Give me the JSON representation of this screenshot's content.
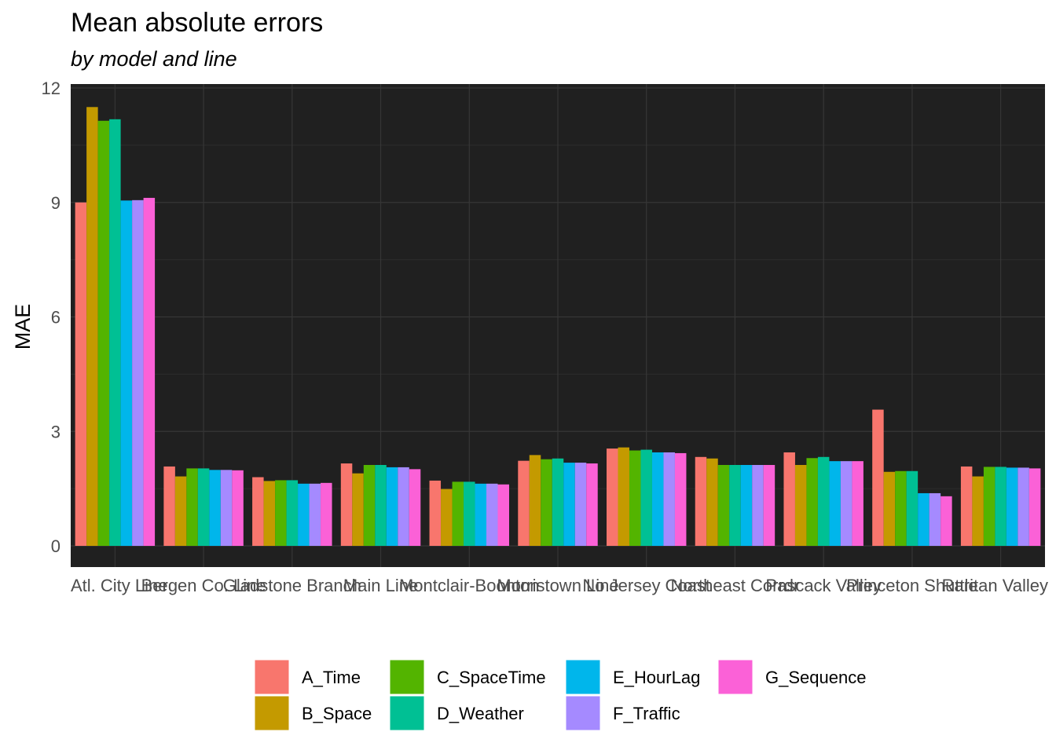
{
  "chart_data": {
    "type": "bar",
    "title": "Mean absolute errors",
    "subtitle": "by model and line",
    "xlabel": "",
    "ylabel": "MAE",
    "ylim": [
      0,
      12
    ],
    "yticks": [
      0,
      3,
      6,
      9,
      12
    ],
    "grid": true,
    "theme": "dark",
    "legend_position": "bottom",
    "categories": [
      "Atl. City Line",
      "Bergen Co. Line",
      "Gladstone Branch",
      "Main Line",
      "Montclair-Boonton",
      "Morristown Line",
      "No Jersey Coast",
      "Northeast Corrdr",
      "Pascack Valley",
      "Princeton Shuttle",
      "Raritan Valley"
    ],
    "series": [
      {
        "name": "A_Time",
        "color": "#F8766D",
        "values": [
          9.0,
          2.08,
          1.8,
          2.16,
          1.71,
          2.23,
          2.55,
          2.33,
          2.45,
          3.57,
          2.08
        ]
      },
      {
        "name": "B_Space",
        "color": "#C49A00",
        "values": [
          11.5,
          1.82,
          1.7,
          1.9,
          1.49,
          2.38,
          2.58,
          2.29,
          2.12,
          1.94,
          1.82
        ]
      },
      {
        "name": "C_SpaceTime",
        "color": "#53B400",
        "values": [
          11.14,
          2.03,
          1.72,
          2.12,
          1.68,
          2.27,
          2.5,
          2.12,
          2.3,
          1.96,
          2.07
        ]
      },
      {
        "name": "D_Weather",
        "color": "#00C094",
        "values": [
          11.18,
          2.03,
          1.72,
          2.12,
          1.68,
          2.29,
          2.52,
          2.12,
          2.33,
          1.96,
          2.07
        ]
      },
      {
        "name": "E_HourLag",
        "color": "#00B6EB",
        "values": [
          9.05,
          1.99,
          1.63,
          2.06,
          1.63,
          2.18,
          2.45,
          2.12,
          2.22,
          1.38,
          2.05
        ]
      },
      {
        "name": "F_Traffic",
        "color": "#A58AFF",
        "values": [
          9.06,
          1.99,
          1.63,
          2.06,
          1.63,
          2.18,
          2.45,
          2.12,
          2.22,
          1.38,
          2.05
        ]
      },
      {
        "name": "G_Sequence",
        "color": "#FB61D7",
        "values": [
          9.12,
          1.98,
          1.65,
          2.01,
          1.61,
          2.16,
          2.43,
          2.12,
          2.22,
          1.3,
          2.03
        ]
      }
    ]
  }
}
